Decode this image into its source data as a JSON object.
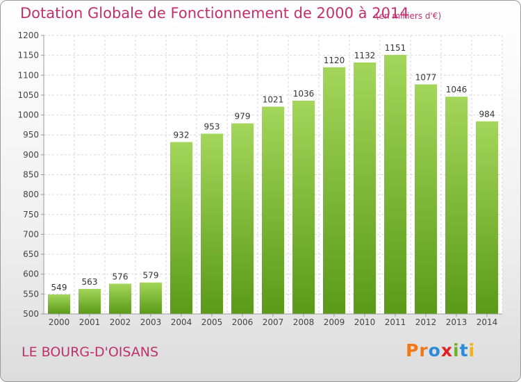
{
  "header": {
    "title": "Dotation Globale de Fonctionnement de 2000 à 2014",
    "unit": "(en milliers d'€)"
  },
  "footer": {
    "town": "LE BOURG-D'OISANS",
    "logo_letters": [
      "P",
      "r",
      "o",
      "x",
      "i",
      "t",
      "i"
    ]
  },
  "colors": {
    "title": "#c0306a",
    "bar_top": "#a3d65a",
    "bar_bottom": "#5a9a18",
    "logo": [
      "#f07818",
      "#f07818",
      "#2c8ad8",
      "#e02020",
      "#70b030",
      "#2c8ad8",
      "#f0b020"
    ]
  },
  "chart_data": {
    "type": "bar",
    "title": "Dotation Globale de Fonctionnement de 2000 à 2014",
    "categories": [
      "2000",
      "2001",
      "2002",
      "2003",
      "2004",
      "2005",
      "2006",
      "2007",
      "2008",
      "2009",
      "2010",
      "2011",
      "2012",
      "2013",
      "2014"
    ],
    "values": [
      549,
      563,
      576,
      579,
      932,
      953,
      979,
      1021,
      1036,
      1120,
      1132,
      1151,
      1077,
      1046,
      984
    ],
    "ylim": [
      500,
      1200
    ],
    "yticks": [
      500,
      550,
      600,
      650,
      700,
      750,
      800,
      850,
      900,
      950,
      1000,
      1050,
      1100,
      1150,
      1200
    ],
    "grid": true,
    "data_labels": true
  }
}
